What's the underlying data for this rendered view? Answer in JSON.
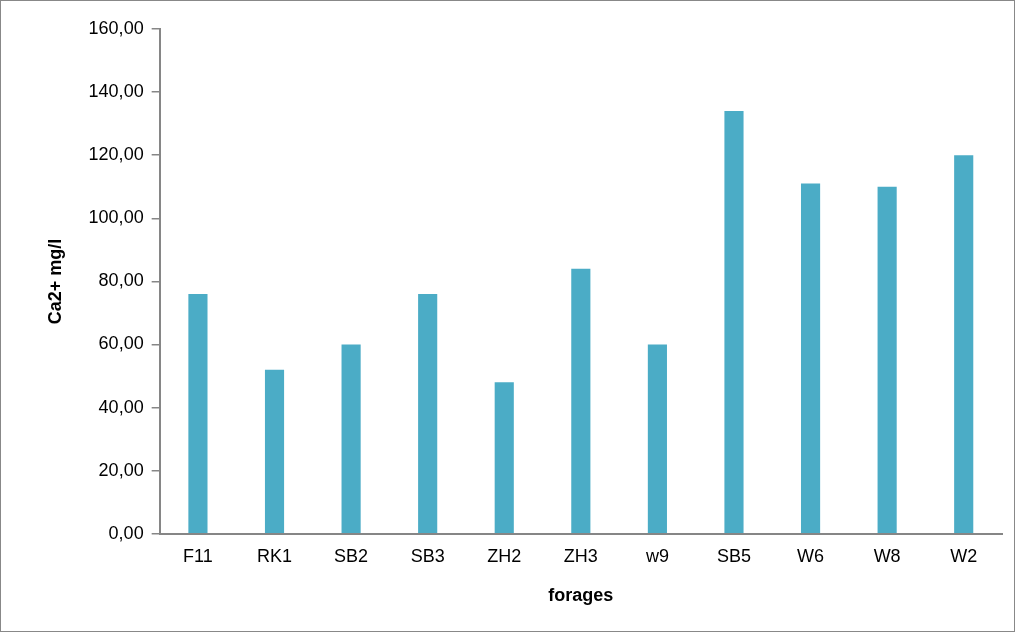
{
  "chart_data": {
    "type": "bar",
    "xlabel": "forages",
    "ylabel": "Ca2+ mg/l",
    "categories": [
      "F11",
      "RK1",
      "SB2",
      "SB3",
      "ZH2",
      "ZH3",
      "w9",
      "SB5",
      "W6",
      "W8",
      "W2"
    ],
    "values": [
      76,
      52,
      60,
      76,
      48,
      84,
      60,
      134,
      111,
      110,
      120
    ],
    "color": "#4bacc6",
    "ylim": [
      0,
      160
    ],
    "yticks": [
      {
        "value": 0,
        "label": "0,00"
      },
      {
        "value": 20,
        "label": "20,00"
      },
      {
        "value": 40,
        "label": "40,00"
      },
      {
        "value": 60,
        "label": "60,00"
      },
      {
        "value": 80,
        "label": "80,00"
      },
      {
        "value": 100,
        "label": "100,00"
      },
      {
        "value": 120,
        "label": "120,00"
      },
      {
        "value": 140,
        "label": "140,00"
      },
      {
        "value": 160,
        "label": "160,00"
      }
    ],
    "grid": false,
    "legend": false
  }
}
